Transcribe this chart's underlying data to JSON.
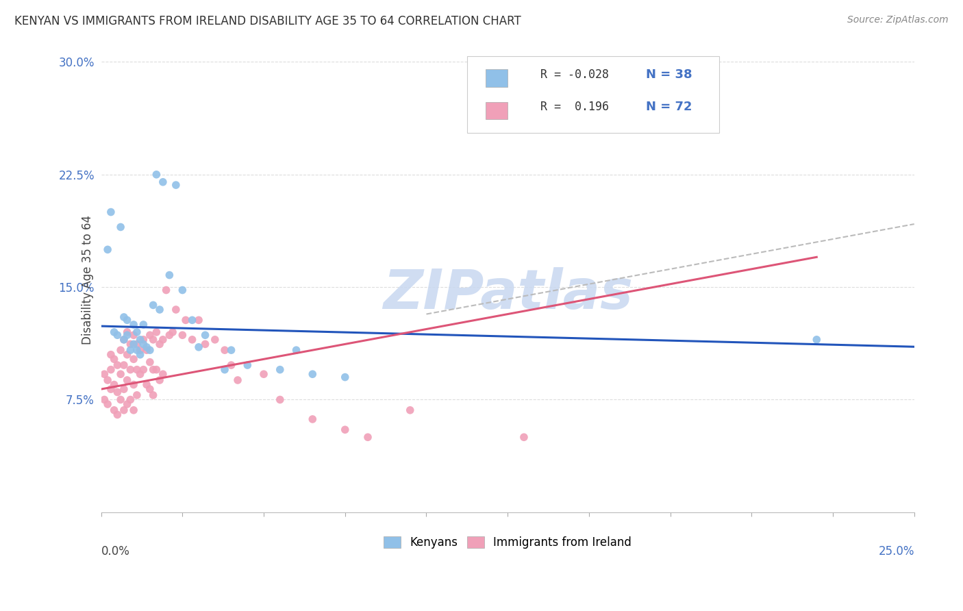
{
  "title": "KENYAN VS IMMIGRANTS FROM IRELAND DISABILITY AGE 35 TO 64 CORRELATION CHART",
  "source": "Source: ZipAtlas.com",
  "ylabel": "Disability Age 35 to 64",
  "xlim": [
    0.0,
    0.25
  ],
  "ylim": [
    0.0,
    0.31
  ],
  "yticks": [
    0.075,
    0.15,
    0.225,
    0.3
  ],
  "ytick_labels": [
    "7.5%",
    "15.0%",
    "22.5%",
    "30.0%"
  ],
  "kenyan_color": "#90C0E8",
  "ireland_color": "#F0A0B8",
  "trend_kenyan_color": "#2255BB",
  "trend_ireland_color": "#DD5577",
  "trend_dashed_color": "#BBBBBB",
  "watermark_color": "#C8D8F0",
  "background_color": "#FFFFFF",
  "kenyan_R": -0.028,
  "kenyan_N": 38,
  "ireland_R": 0.196,
  "ireland_N": 72,
  "kenyan_x": [
    0.002,
    0.003,
    0.004,
    0.005,
    0.006,
    0.007,
    0.007,
    0.008,
    0.008,
    0.009,
    0.01,
    0.01,
    0.011,
    0.011,
    0.012,
    0.012,
    0.013,
    0.013,
    0.014,
    0.015,
    0.016,
    0.017,
    0.018,
    0.019,
    0.021,
    0.023,
    0.025,
    0.028,
    0.03,
    0.032,
    0.038,
    0.04,
    0.045,
    0.055,
    0.06,
    0.065,
    0.075,
    0.22
  ],
  "kenyan_y": [
    0.175,
    0.2,
    0.12,
    0.118,
    0.19,
    0.13,
    0.115,
    0.128,
    0.118,
    0.108,
    0.125,
    0.112,
    0.12,
    0.108,
    0.115,
    0.105,
    0.112,
    0.125,
    0.11,
    0.108,
    0.138,
    0.225,
    0.135,
    0.22,
    0.158,
    0.218,
    0.148,
    0.128,
    0.11,
    0.118,
    0.095,
    0.108,
    0.098,
    0.095,
    0.108,
    0.092,
    0.09,
    0.115
  ],
  "ireland_x": [
    0.001,
    0.001,
    0.002,
    0.002,
    0.003,
    0.003,
    0.003,
    0.004,
    0.004,
    0.004,
    0.005,
    0.005,
    0.005,
    0.006,
    0.006,
    0.006,
    0.007,
    0.007,
    0.007,
    0.007,
    0.008,
    0.008,
    0.008,
    0.008,
    0.009,
    0.009,
    0.009,
    0.01,
    0.01,
    0.01,
    0.01,
    0.011,
    0.011,
    0.011,
    0.012,
    0.012,
    0.013,
    0.013,
    0.014,
    0.014,
    0.015,
    0.015,
    0.015,
    0.016,
    0.016,
    0.016,
    0.017,
    0.017,
    0.018,
    0.018,
    0.019,
    0.019,
    0.02,
    0.021,
    0.022,
    0.023,
    0.025,
    0.026,
    0.028,
    0.03,
    0.032,
    0.035,
    0.038,
    0.04,
    0.042,
    0.05,
    0.055,
    0.065,
    0.075,
    0.082,
    0.095,
    0.13
  ],
  "ireland_y": [
    0.092,
    0.075,
    0.088,
    0.072,
    0.105,
    0.095,
    0.082,
    0.102,
    0.085,
    0.068,
    0.098,
    0.08,
    0.065,
    0.108,
    0.092,
    0.075,
    0.115,
    0.098,
    0.082,
    0.068,
    0.12,
    0.105,
    0.088,
    0.072,
    0.112,
    0.095,
    0.075,
    0.118,
    0.102,
    0.085,
    0.068,
    0.112,
    0.095,
    0.078,
    0.108,
    0.092,
    0.115,
    0.095,
    0.108,
    0.085,
    0.118,
    0.1,
    0.082,
    0.115,
    0.095,
    0.078,
    0.12,
    0.095,
    0.112,
    0.088,
    0.115,
    0.092,
    0.148,
    0.118,
    0.12,
    0.135,
    0.118,
    0.128,
    0.115,
    0.128,
    0.112,
    0.115,
    0.108,
    0.098,
    0.088,
    0.092,
    0.075,
    0.062,
    0.055,
    0.05,
    0.068,
    0.05
  ],
  "dpi": 100,
  "figsize": [
    14.06,
    8.92
  ]
}
